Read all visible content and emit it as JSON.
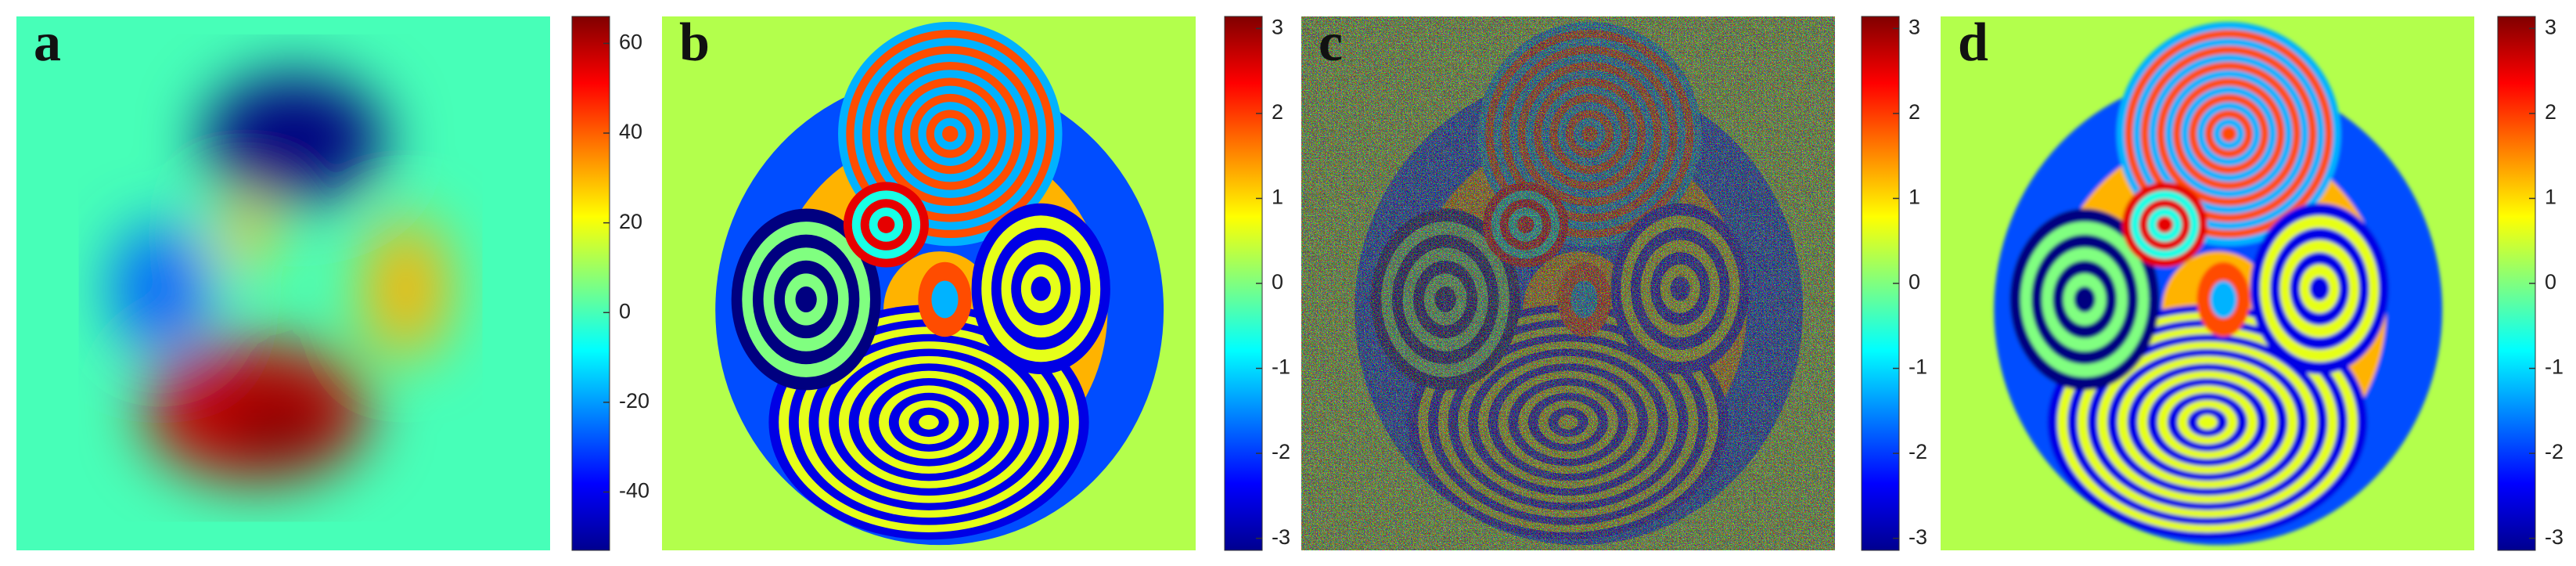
{
  "chart_data": [
    {
      "type": "heatmap",
      "label": "a",
      "ylim": [
        -53,
        66
      ],
      "yticks": [
        -40,
        -20,
        0,
        20,
        40,
        60
      ]
    },
    {
      "type": "heatmap",
      "label": "b",
      "ylim": [
        -3.1416,
        3.1416
      ],
      "yticks": [
        -3,
        -2,
        -1,
        0,
        1,
        2,
        3
      ]
    },
    {
      "type": "heatmap",
      "label": "c",
      "ylim": [
        -3.1416,
        3.1416
      ],
      "yticks": [
        -3,
        -2,
        -1,
        0,
        1,
        2,
        3
      ]
    },
    {
      "type": "heatmap",
      "label": "d",
      "ylim": [
        -3.1416,
        3.1416
      ],
      "yticks": [
        -3,
        -2,
        -1,
        0,
        1,
        2,
        3
      ]
    }
  ]
}
